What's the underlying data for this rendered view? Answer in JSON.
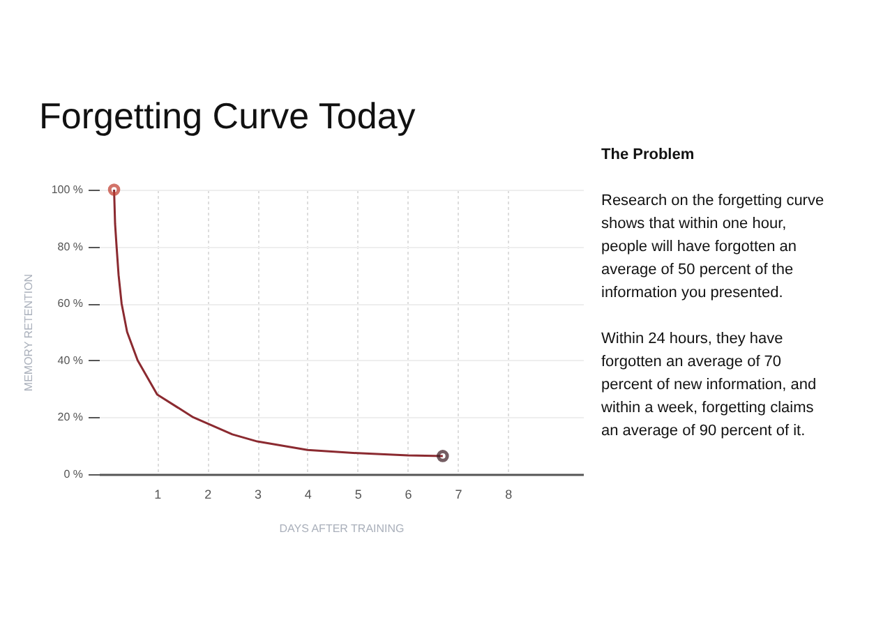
{
  "chart_data": {
    "type": "line",
    "title": "Forgetting Curve Today",
    "xlabel": "DAYS AFTER TRAINING",
    "ylabel": "MEMORY RETENTION",
    "xlim": [
      -0.16,
      9.5
    ],
    "xticks": [
      1,
      2,
      3,
      4,
      5,
      6,
      7,
      8
    ],
    "ylim": [
      0,
      100
    ],
    "yticks": [
      {
        "value": 0,
        "label": "0 %"
      },
      {
        "value": 20,
        "label": "20 %"
      },
      {
        "value": 40,
        "label": "40 %"
      },
      {
        "value": 60,
        "label": "60 %"
      },
      {
        "value": 80,
        "label": "80 %"
      },
      {
        "value": 100,
        "label": "100 %"
      }
    ],
    "grid": true,
    "line_style": "solid",
    "series": [
      {
        "marker": "none",
        "color": "#8b2a30",
        "x": [
          0.14,
          0.16,
          0.19,
          0.23,
          0.29,
          0.4,
          0.61,
          1,
          1.72,
          2.5,
          3,
          4,
          5,
          6,
          6.7
        ],
        "values": [
          100,
          88,
          80,
          70,
          60,
          50,
          40,
          28,
          20,
          14,
          11.5,
          8.5,
          7.4,
          6.6,
          6.4
        ]
      },
      {
        "type": "scatter",
        "marker": "circle",
        "colors": [
          "#c0392b",
          "#3a1a20"
        ],
        "x": [
          0.14,
          6.7
        ],
        "values": [
          100,
          6.4
        ]
      }
    ],
    "annotations": [
      "The Problem",
      "Research on the forgetting curve shows that within one hour, people will have forgotten an average of 50 percent of the information you presented.",
      "Within 24 hours, they have forgotten an average of 70 percent of new information, and within a week, forgetting claims an average of 90 percent of it."
    ]
  }
}
